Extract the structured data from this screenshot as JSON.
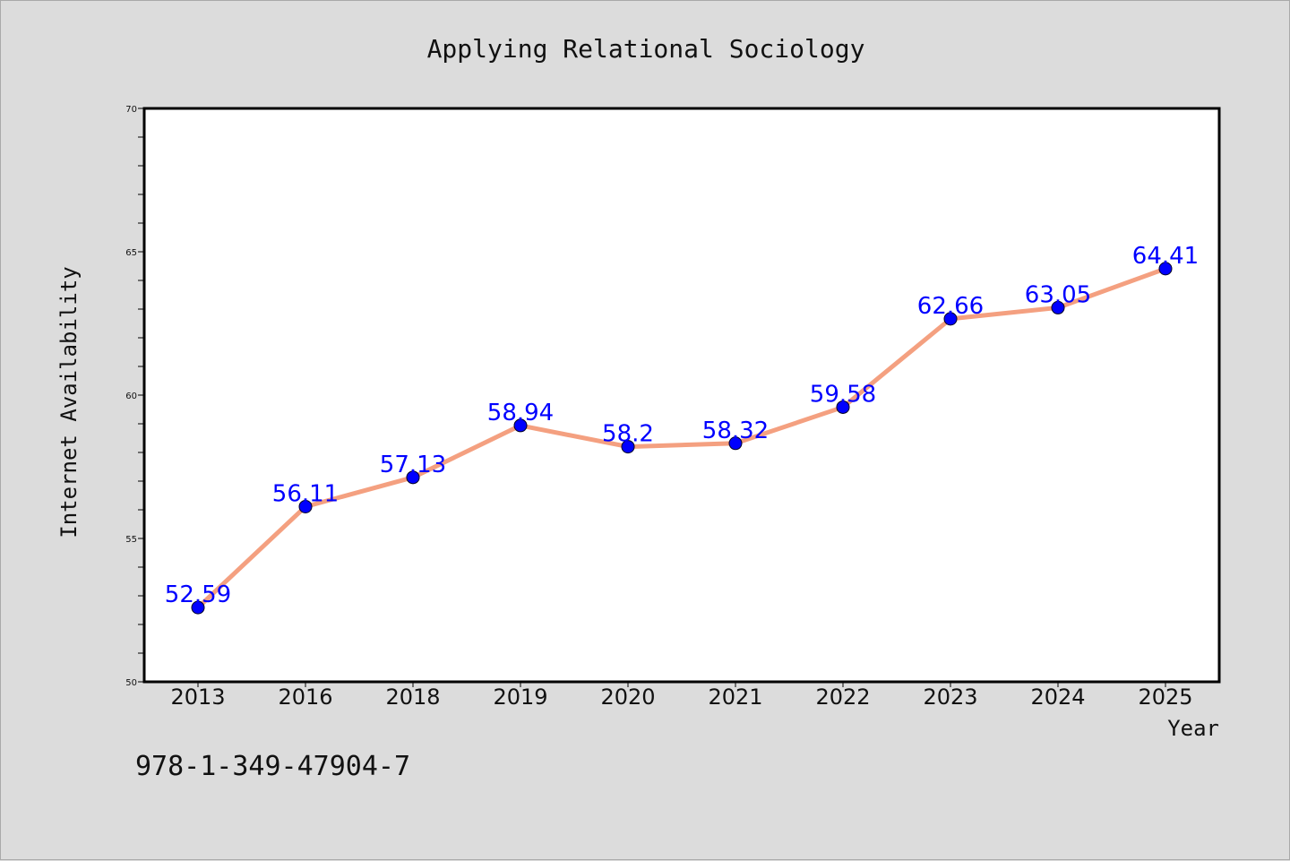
{
  "chart_data": {
    "type": "line",
    "title": "Applying Relational Sociology",
    "xlabel": "Year",
    "ylabel": "Internet Availability",
    "categories": [
      "2013",
      "2016",
      "2018",
      "2019",
      "2020",
      "2021",
      "2022",
      "2023",
      "2024",
      "2025"
    ],
    "series": [
      {
        "values": [
          52.59,
          56.11,
          57.13,
          58.94,
          58.2,
          58.32,
          59.58,
          62.66,
          63.05,
          64.41
        ],
        "data_labels": [
          "52.59",
          "56.11",
          "57.13",
          "58.94",
          "58.2",
          "58.32",
          "59.58",
          "62.66",
          "63.05",
          "64.41"
        ],
        "line_color": "#f4a080",
        "marker_color": "#0000ff"
      }
    ],
    "y_ticks": [
      "50",
      "55",
      "60",
      "65",
      "70"
    ],
    "ylim": [
      50,
      70
    ],
    "grid": false,
    "legend": "none"
  },
  "footer": {
    "text": "978-1-349-47904-7"
  },
  "colors": {
    "background": "#dcdcdc",
    "plot_background": "#ffffff",
    "line": "#f4a080",
    "marker": "#0000ff",
    "data_label": "#0000ff"
  }
}
